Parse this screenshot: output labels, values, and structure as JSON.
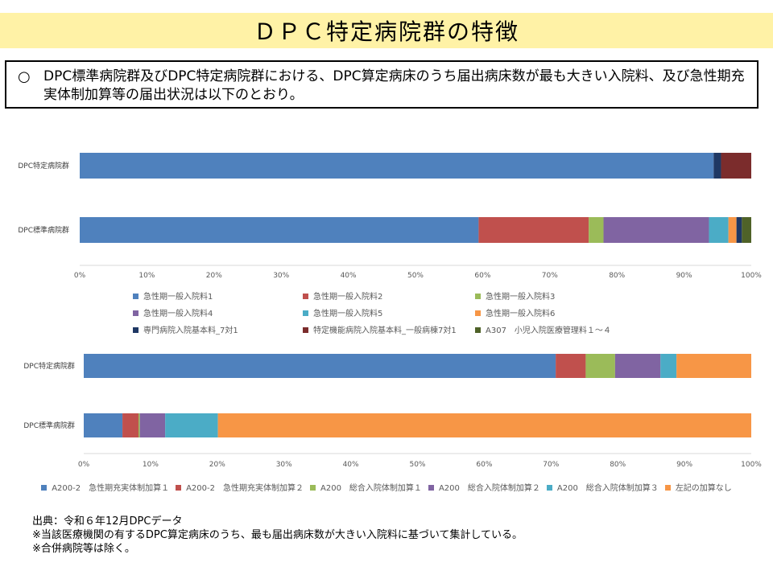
{
  "title": "ＤＰＣ特定病院群の特徴",
  "summary": {
    "mark": "○",
    "text": "DPC標準病院群及びDPC特定病院群における、DPC算定病床のうち届出病床数が最も大きい入院料、及び急性期充実体制加算等の届出状況は以下のとおり。"
  },
  "chart_data": [
    {
      "type": "bar",
      "orientation": "horizontal",
      "stacked": "percent",
      "categories": [
        "DPC特定病院群",
        "DPC標準病院群"
      ],
      "xlim": [
        0,
        100
      ],
      "xticks": [
        "0%",
        "10%",
        "20%",
        "30%",
        "40%",
        "50%",
        "60%",
        "70%",
        "80%",
        "90%",
        "100%"
      ],
      "legend_position": "bottom",
      "series": [
        {
          "name": "急性期一般入院料1",
          "color": "#4f81bd",
          "values": [
            94.4,
            59.4
          ]
        },
        {
          "name": "急性期一般入院料2",
          "color": "#c0504d",
          "values": [
            0,
            16.4
          ]
        },
        {
          "name": "急性期一般入院料3",
          "color": "#9bbb59",
          "values": [
            0,
            2.2
          ]
        },
        {
          "name": "急性期一般入院料4",
          "color": "#8064a2",
          "values": [
            0,
            15.7
          ]
        },
        {
          "name": "急性期一般入院料5",
          "color": "#4bacc6",
          "values": [
            0,
            2.9
          ]
        },
        {
          "name": "急性期一般入院料6",
          "color": "#f79646",
          "values": [
            0,
            1.2
          ]
        },
        {
          "name": "専門病院入院基本料_7対1",
          "color": "#1f3864",
          "values": [
            1.1,
            0.8
          ]
        },
        {
          "name": "特定機能病院入院基本料_一般病棟7対1",
          "color": "#7b2c2c",
          "values": [
            4.5,
            0
          ]
        },
        {
          "name": "A307　小児入院医療管理料１～４",
          "color": "#4f6228",
          "values": [
            0,
            1.4
          ]
        }
      ]
    },
    {
      "type": "bar",
      "orientation": "horizontal",
      "stacked": "percent",
      "categories": [
        "DPC特定病院群",
        "DPC標準病院群"
      ],
      "xlim": [
        0,
        100
      ],
      "xticks": [
        "0%",
        "10%",
        "20%",
        "30%",
        "40%",
        "50%",
        "60%",
        "70%",
        "80%",
        "90%",
        "100%"
      ],
      "legend_position": "bottom",
      "series": [
        {
          "name": "A200-2　急性期充実体制加算１",
          "color": "#4f81bd",
          "values": [
            70.7,
            5.8
          ]
        },
        {
          "name": "A200-2　急性期充実体制加算２",
          "color": "#c0504d",
          "values": [
            4.5,
            2.4
          ]
        },
        {
          "name": "A200　総合入院体制加算１",
          "color": "#9bbb59",
          "values": [
            4.4,
            0.2
          ]
        },
        {
          "name": "A200　総合入院体制加算２",
          "color": "#8064a2",
          "values": [
            6.8,
            3.8
          ]
        },
        {
          "name": "A200　総合入院体制加算３",
          "color": "#4bacc6",
          "values": [
            2.4,
            7.9
          ]
        },
        {
          "name": "左記の加算なし",
          "color": "#f79646",
          "values": [
            11.2,
            79.9
          ]
        }
      ]
    }
  ],
  "footnotes": [
    "出典：令和６年12月DPCデータ",
    "※当該医療機関の有するDPC算定病床のうち、最も届出病床数が大きい入院料に基づいて集計している。",
    "※合併病院等は除く。"
  ]
}
